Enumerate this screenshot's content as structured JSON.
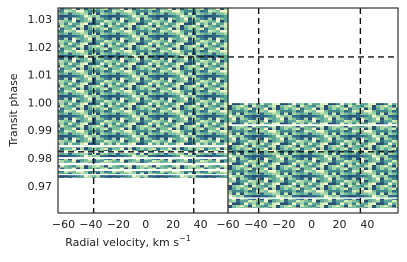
{
  "chart_data": {
    "type": "spectra",
    "ylabel": "Transit phase",
    "xlabel": "Radial velocity, km s",
    "xlabel_sup": "−1",
    "ylim": [
      0.9606,
      1.0343
    ],
    "yticks": [
      0.97,
      0.98,
      0.99,
      {
        "value": 1,
        "label": "1.00"
      },
      1.01,
      1.02,
      1.03
    ],
    "hlines": [
      1.0167,
      0.9826
    ],
    "panels": [
      {
        "xlim": [
          -64,
          60
        ],
        "xticks": [
          {
            "value": -60,
            "label": "−60"
          },
          {
            "value": -40,
            "label": "−40"
          },
          {
            "value": -20,
            "label": "−20"
          },
          0,
          20,
          40
        ],
        "vlines": [
          -38,
          35
        ],
        "segments": [
          [
            0.985,
            1.0343
          ],
          [
            0.9829,
            0.9843
          ],
          [
            0.9807,
            0.9822
          ],
          [
            0.9786,
            0.98
          ],
          [
            0.9764,
            0.9778
          ],
          [
            0.9746,
            0.9757
          ],
          [
            0.9732,
            0.9742
          ]
        ]
      },
      {
        "xlim": [
          -60,
          62
        ],
        "xticks": [
          {
            "value": -60,
            "label": "−60"
          },
          {
            "value": -40,
            "label": "−40"
          },
          {
            "value": -20,
            "label": "−20"
          },
          0,
          20,
          40
        ],
        "vlines": [
          -38,
          35
        ],
        "segments": [
          [
            0.9925,
            1.0001
          ],
          [
            0.9662,
            0.9919
          ],
          [
            0.9624,
            0.9657
          ]
        ]
      }
    ]
  }
}
